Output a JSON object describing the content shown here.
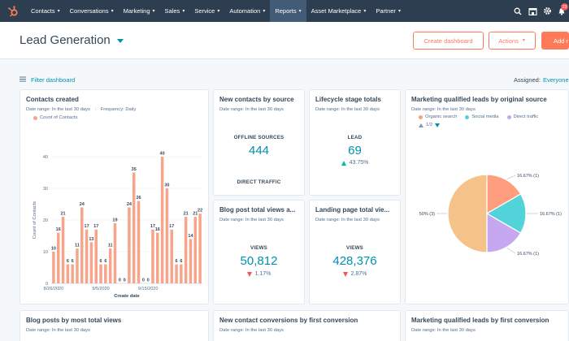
{
  "nav": {
    "items": [
      "Contacts",
      "Conversations",
      "Marketing",
      "Sales",
      "Service",
      "Automation",
      "Reports",
      "Asset Marketplace",
      "Partner"
    ],
    "active_index": 6,
    "notification_count": "23"
  },
  "header": {
    "title": "Lead Generation",
    "create_dashboard": "Create dashboard",
    "actions": "Actions",
    "add": "Add r"
  },
  "filter": {
    "label": "Filter dashboard",
    "assigned_label": "Assigned:",
    "assigned_value": "Everyone"
  },
  "cards": {
    "contacts_created": {
      "title": "Contacts created",
      "date_range": "Date range: In the last 30 days",
      "frequency": "Frequency: Daily",
      "legend": "Count of Contacts",
      "ylabel": "Count of Contacts",
      "xlabel": "Create date"
    },
    "new_contacts": {
      "title": "New contacts by source",
      "date_range": "Date range: In the last 30 days",
      "label1": "OFFLINE SOURCES",
      "value1": "444",
      "label2": "DIRECT TRAFFIC"
    },
    "lifecycle": {
      "title": "Lifecycle stage totals",
      "date_range": "Date range: In the last 30 days",
      "label": "LEAD",
      "value": "69",
      "change": "43.75%"
    },
    "mql_source": {
      "title": "Marketing qualified leads by original source",
      "date_range": "Date range: In the last 30 days",
      "legend": [
        "Organic search",
        "Social media",
        "Direct traffic"
      ],
      "pager": "1/2"
    },
    "blog_views": {
      "title": "Blog post total views a...",
      "date_range": "Date range: In the last 30 days",
      "label": "VIEWS",
      "value": "50,812",
      "change": "1.17%"
    },
    "landing_views": {
      "title": "Landing page total vie...",
      "date_range": "Date range: In the last 30 days",
      "label": "VIEWS",
      "value": "428,376",
      "change": "2.87%"
    },
    "blog_posts": {
      "title": "Blog posts by most total views",
      "date_range": "Date range: In the last 30 days"
    },
    "conversions": {
      "title": "New contact conversions by first conversion",
      "date_range": "Date range: In the last 30 days"
    },
    "mql_first": {
      "title": "Marketing qualified leads by first conversion",
      "date_range": "Date range: In the last 30 days"
    }
  },
  "chart_data": [
    {
      "type": "bar",
      "ylabel": "Count of Contacts",
      "xlabel": "Create date",
      "series": [
        {
          "name": "Count of Contacts",
          "values": [
            10,
            16,
            21,
            6,
            6,
            11,
            24,
            17,
            13,
            17,
            6,
            6,
            11,
            19,
            0,
            0,
            24,
            35,
            26,
            0,
            0,
            17,
            16,
            40,
            30,
            17,
            6,
            6,
            21,
            14,
            21,
            22
          ]
        }
      ],
      "tick_labels": [
        "8/26/2020",
        "9/5/2020",
        "9/15/2020"
      ],
      "ylim": [
        0,
        40
      ],
      "yticks": [
        0,
        10,
        20,
        30,
        40
      ],
      "color": "#f8a48a"
    },
    {
      "type": "pie",
      "slices": [
        {
          "name": "Organic search",
          "value": 16.67,
          "label": "16.67% (1)",
          "color": "#ff9e7f"
        },
        {
          "name": "Social media",
          "value": 16.67,
          "label": "16.67% (1)",
          "color": "#51d3d9"
        },
        {
          "name": "Direct traffic",
          "value": 16.67,
          "label": "16.67% (1)",
          "color": "#c6a8f0"
        },
        {
          "name": "",
          "value": 50,
          "label": "50% (3)",
          "color": "#f5c28a"
        }
      ]
    }
  ]
}
